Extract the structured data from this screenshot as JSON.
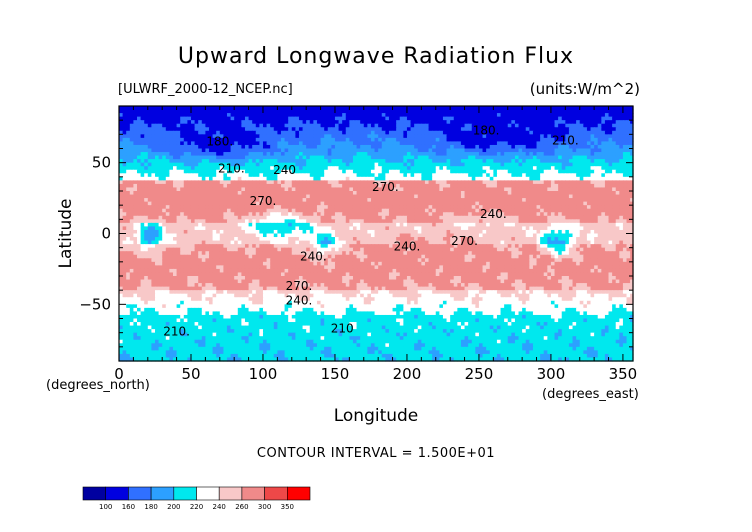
{
  "chart_data": {
    "type": "contour",
    "title": "Upward Longwave Radiation Flux",
    "subtitle": "[ULWRF_2000-12_NCEP.nc]",
    "units_label": "(units:W/m^2)",
    "xlabel": "Longitude",
    "ylabel": "Latitude",
    "x_units": "(degrees_east)",
    "y_units": "(degrees_north)",
    "xlim": [
      0,
      357
    ],
    "ylim": [
      -90,
      90
    ],
    "x_ticks": [
      "0",
      "50",
      "100",
      "150",
      "200",
      "250",
      "300",
      "350"
    ],
    "y_ticks": [
      "50",
      "0",
      "−50"
    ],
    "contour_interval_text": "CONTOUR INTERVAL = 1.500E+01",
    "contour_labels": [
      {
        "text": "180.",
        "lon": 70,
        "lat": 62
      },
      {
        "text": "210.",
        "lon": 78,
        "lat": 43
      },
      {
        "text": "240",
        "lon": 115,
        "lat": 42
      },
      {
        "text": "270.",
        "lon": 100,
        "lat": 20
      },
      {
        "text": "180.",
        "lon": 255,
        "lat": 70
      },
      {
        "text": "210.",
        "lon": 310,
        "lat": 63
      },
      {
        "text": "270.",
        "lon": 185,
        "lat": 30
      },
      {
        "text": "240.",
        "lon": 260,
        "lat": 11
      },
      {
        "text": "240.",
        "lon": 200,
        "lat": -12
      },
      {
        "text": "270.",
        "lon": 240,
        "lat": -8
      },
      {
        "text": "240.",
        "lon": 135,
        "lat": -19
      },
      {
        "text": "270.",
        "lon": 125,
        "lat": -40
      },
      {
        "text": "240.",
        "lon": 125,
        "lat": -50
      },
      {
        "text": "210.",
        "lon": 40,
        "lat": -72
      },
      {
        "text": "210",
        "lon": 155,
        "lat": -70
      }
    ],
    "colorbar": {
      "levels": [
        "100",
        "160",
        "180",
        "200",
        "220",
        "240",
        "260",
        "300",
        "350"
      ],
      "colors": [
        "#0000a0",
        "#0000e0",
        "#3070ff",
        "#2ca0ff",
        "#00e8ee",
        "#ffffff",
        "#f8c8c8",
        "#f08a8a",
        "#ee4848",
        "#ff0000"
      ]
    }
  }
}
